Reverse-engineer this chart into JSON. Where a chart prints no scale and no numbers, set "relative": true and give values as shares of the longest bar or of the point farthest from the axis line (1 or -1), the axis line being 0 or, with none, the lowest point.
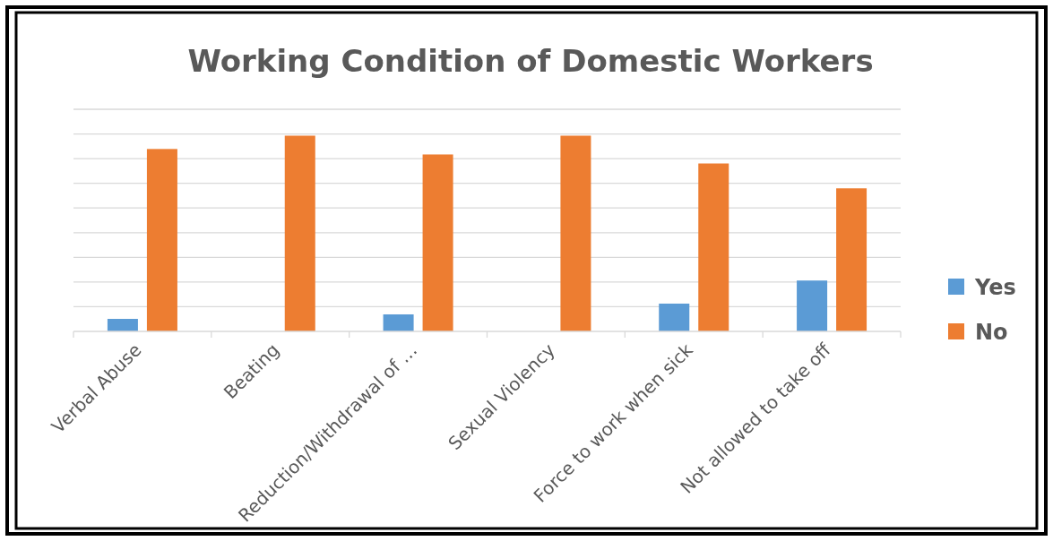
{
  "chart_data": {
    "type": "bar",
    "title": "Working Condition of Domestic Workers",
    "relative": true,
    "grid": "y",
    "legend": "right",
    "categories": [
      "Verbal Abuse",
      "Beating",
      "Reduction/Withdrawal of …",
      "Sexual Violency",
      "Force to work when sick",
      "Not allowed to take off"
    ],
    "series": [
      {
        "name": "Yes",
        "color": "#5b9bd5",
        "values": [
          0.064,
          0,
          0.087,
          0,
          0.142,
          0.26
        ]
      },
      {
        "name": "No",
        "color": "#ed7d31",
        "values": [
          0.932,
          1,
          0.904,
          1,
          0.858,
          0.731
        ]
      }
    ]
  }
}
